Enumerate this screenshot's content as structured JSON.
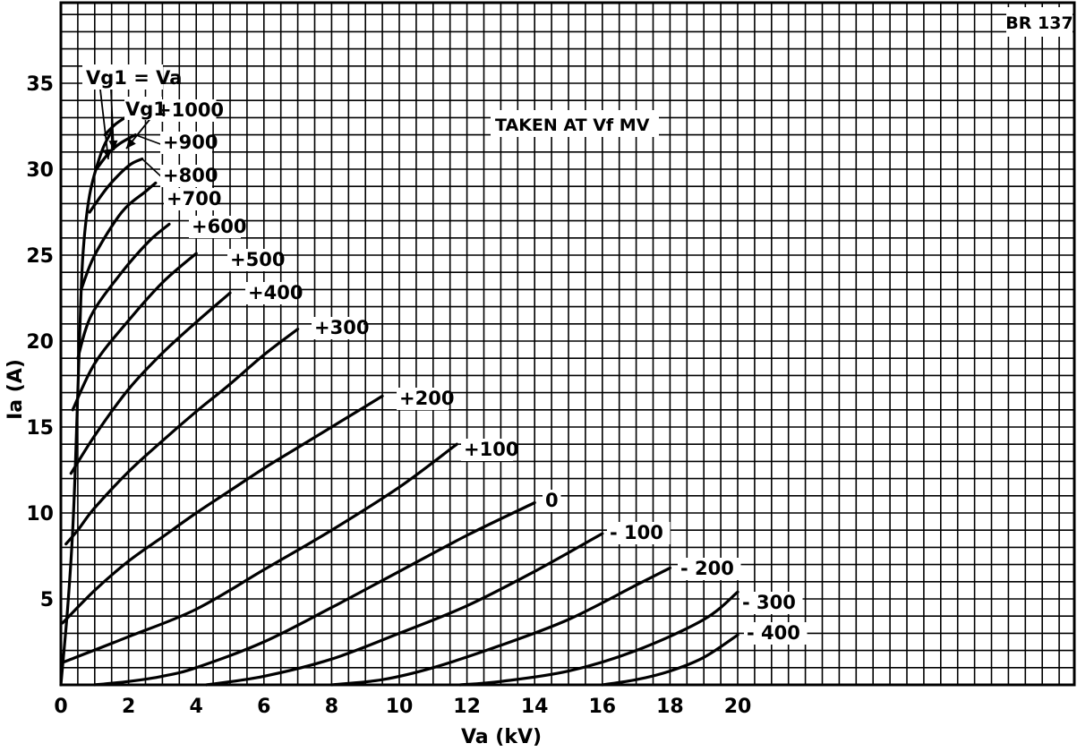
{
  "chart_data": {
    "type": "line",
    "code": "BR 137",
    "note": "TAKEN AT Vf MV",
    "xlabel": "Va (kV)",
    "ylabel": "Ia (A)",
    "xlim": [
      0,
      30
    ],
    "ylim": [
      0,
      39
    ],
    "x_ticks": [
      "0",
      "2",
      "4",
      "6",
      "8",
      "10",
      "12",
      "14",
      "16",
      "18",
      "20"
    ],
    "y_ticks": [
      "5",
      "10",
      "15",
      "20",
      "25",
      "30",
      "35"
    ],
    "boundary_label": "Vg1 = Va",
    "grid_label_prefix": "Vg1",
    "boundary": [
      [
        0,
        0
      ],
      [
        0.2,
        4.5
      ],
      [
        0.35,
        9
      ],
      [
        0.45,
        14
      ],
      [
        0.55,
        20
      ],
      [
        0.65,
        25
      ],
      [
        0.85,
        28.5
      ],
      [
        1.2,
        31
      ],
      [
        1.5,
        32.2
      ]
    ],
    "series": [
      {
        "name": "+1000",
        "label": "+1000",
        "points": [
          [
            1.3,
            32.0
          ],
          [
            1.6,
            32.6
          ],
          [
            1.9,
            33.0
          ]
        ]
      },
      {
        "name": "+900",
        "label": "+900",
        "points": [
          [
            1.05,
            30.0
          ],
          [
            1.4,
            30.9
          ],
          [
            1.75,
            31.5
          ],
          [
            2.2,
            32.0
          ]
        ]
      },
      {
        "name": "+800",
        "label": "+800",
        "points": [
          [
            0.85,
            27.5
          ],
          [
            1.4,
            29.0
          ],
          [
            2.0,
            30.2
          ],
          [
            2.4,
            30.6
          ]
        ]
      },
      {
        "name": "+700",
        "label": "+700",
        "points": [
          [
            0.6,
            23.0
          ],
          [
            1.0,
            25.0
          ],
          [
            1.8,
            27.5
          ],
          [
            2.5,
            28.7
          ],
          [
            2.8,
            29.2
          ]
        ]
      },
      {
        "name": "+600",
        "label": "+600",
        "points": [
          [
            0.5,
            19.0
          ],
          [
            0.9,
            21.5
          ],
          [
            1.8,
            24.0
          ],
          [
            2.6,
            25.8
          ],
          [
            3.2,
            26.8
          ]
        ]
      },
      {
        "name": "+500",
        "label": "+500",
        "points": [
          [
            0.35,
            16.0
          ],
          [
            1.0,
            18.7
          ],
          [
            2.0,
            21.2
          ],
          [
            3.0,
            23.4
          ],
          [
            4.0,
            25.1
          ]
        ]
      },
      {
        "name": "+400",
        "label": "+400",
        "points": [
          [
            0.3,
            12.3
          ],
          [
            1.0,
            14.5
          ],
          [
            2.0,
            17.2
          ],
          [
            3.0,
            19.3
          ],
          [
            4.0,
            21.1
          ],
          [
            5.0,
            22.8
          ]
        ]
      },
      {
        "name": "+300",
        "label": "+300",
        "points": [
          [
            0.15,
            8.2
          ],
          [
            0.5,
            9.0
          ],
          [
            1.0,
            10.3
          ],
          [
            2.0,
            12.4
          ],
          [
            3.0,
            14.2
          ],
          [
            4.0,
            15.9
          ],
          [
            5.0,
            17.5
          ],
          [
            6.0,
            19.2
          ],
          [
            7.0,
            20.7
          ]
        ]
      },
      {
        "name": "+200",
        "label": "+200",
        "points": [
          [
            0.05,
            3.6
          ],
          [
            1.0,
            5.5
          ],
          [
            2.0,
            7.2
          ],
          [
            3.0,
            8.6
          ],
          [
            4.0,
            10.0
          ],
          [
            5.0,
            11.3
          ],
          [
            6.0,
            12.6
          ],
          [
            7.0,
            13.8
          ],
          [
            8.0,
            15.0
          ],
          [
            9.0,
            16.2
          ],
          [
            9.5,
            16.8
          ]
        ]
      },
      {
        "name": "+100",
        "label": "+100",
        "points": [
          [
            0.05,
            1.3
          ],
          [
            2.0,
            2.8
          ],
          [
            4.0,
            4.4
          ],
          [
            6.0,
            6.7
          ],
          [
            8.0,
            9.0
          ],
          [
            10.0,
            11.5
          ],
          [
            11.7,
            14.0
          ]
        ]
      },
      {
        "name": "0",
        "label": "0",
        "points": [
          [
            1.0,
            0.0
          ],
          [
            2.0,
            0.2
          ],
          [
            3.0,
            0.5
          ],
          [
            4.0,
            1.0
          ],
          [
            6.0,
            2.5
          ],
          [
            8.0,
            4.5
          ],
          [
            10.0,
            6.6
          ],
          [
            12.0,
            8.7
          ],
          [
            14.0,
            10.6
          ]
        ]
      },
      {
        "name": "-100",
        "label": "- 100",
        "points": [
          [
            4.3,
            0.0
          ],
          [
            6.0,
            0.5
          ],
          [
            8.0,
            1.5
          ],
          [
            10.0,
            3.0
          ],
          [
            12.0,
            4.6
          ],
          [
            14.0,
            6.6
          ],
          [
            16.0,
            8.8
          ]
        ]
      },
      {
        "name": "-200",
        "label": "- 200",
        "points": [
          [
            8.0,
            0.0
          ],
          [
            9.5,
            0.3
          ],
          [
            11.0,
            1.0
          ],
          [
            13.0,
            2.3
          ],
          [
            15.0,
            3.8
          ],
          [
            17.0,
            5.8
          ],
          [
            18.0,
            6.8
          ]
        ]
      },
      {
        "name": "-300",
        "label": "- 300",
        "points": [
          [
            11.8,
            0.0
          ],
          [
            13.0,
            0.2
          ],
          [
            15.0,
            0.8
          ],
          [
            17.0,
            2.0
          ],
          [
            19.0,
            3.8
          ],
          [
            20.0,
            5.4
          ]
        ]
      },
      {
        "name": "-400",
        "label": "- 400",
        "points": [
          [
            16.0,
            0.0
          ],
          [
            17.0,
            0.3
          ],
          [
            18.0,
            0.8
          ],
          [
            19.0,
            1.6
          ],
          [
            20.0,
            2.9
          ]
        ]
      }
    ]
  }
}
